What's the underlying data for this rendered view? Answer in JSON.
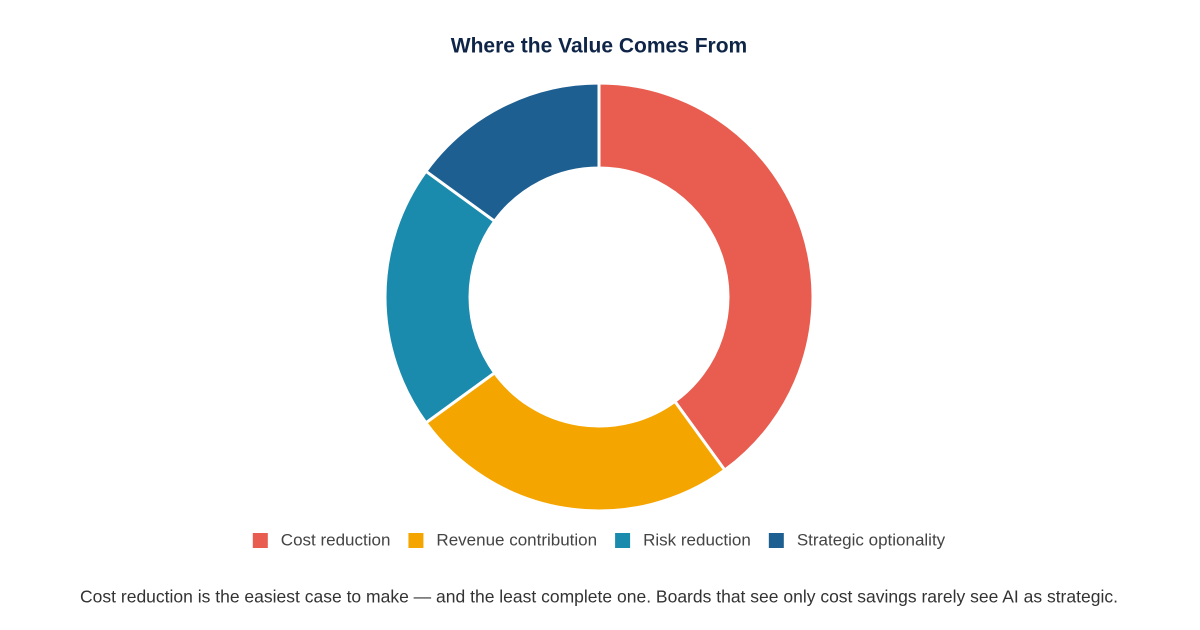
{
  "chart_data": {
    "type": "doughnut",
    "title": "Where the Value Comes From",
    "categories": [
      "Cost reduction",
      "Revenue contribution",
      "Risk reduction",
      "Strategic optionality"
    ],
    "values": [
      40,
      25,
      20,
      15
    ],
    "colors": [
      "#e85d4f",
      "#f5a500",
      "#1a8aad",
      "#1e5f92"
    ],
    "legend": "bottom",
    "caption": "Cost reduction is the easiest case to make — and the least complete one. Boards that see only cost savings rarely see AI as strategic."
  }
}
